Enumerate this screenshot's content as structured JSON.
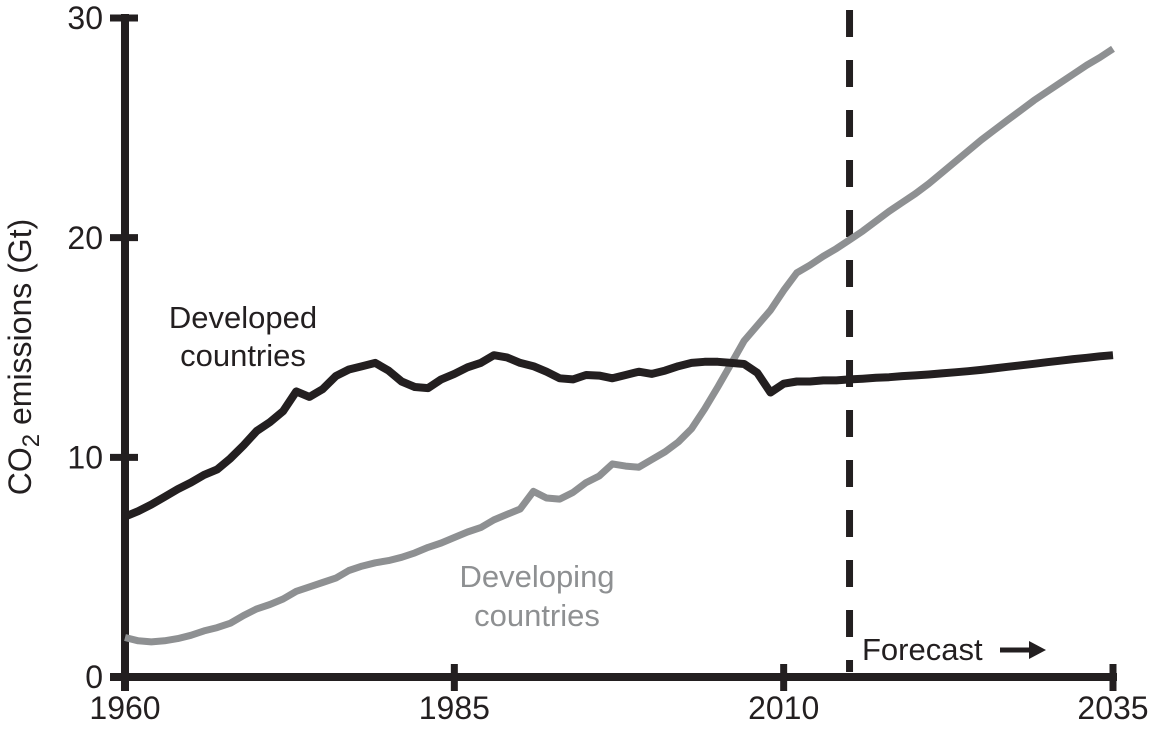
{
  "chart_data": {
    "type": "line",
    "title": "",
    "xlabel": "",
    "ylabel": {
      "prefix": "CO",
      "sub": "2",
      "suffix": " emissions (Gt)"
    },
    "xlim": [
      1960,
      2035
    ],
    "ylim": [
      0,
      30
    ],
    "xticks": [
      1960,
      1985,
      2010,
      2035
    ],
    "yticks": [
      0,
      10,
      20,
      30
    ],
    "grid": false,
    "legend_position": "inline-annotations",
    "x_start": 1960,
    "x_step": 1,
    "series": [
      {
        "name": "Developed countries",
        "color": "#231f20",
        "line_width": 8,
        "values": [
          7.3,
          7.55,
          7.85,
          8.2,
          8.55,
          8.85,
          9.2,
          9.45,
          9.95,
          10.55,
          11.2,
          11.6,
          12.1,
          13.0,
          12.75,
          13.1,
          13.7,
          14.0,
          14.15,
          14.3,
          13.95,
          13.45,
          13.2,
          13.15,
          13.55,
          13.8,
          14.1,
          14.3,
          14.65,
          14.55,
          14.3,
          14.15,
          13.9,
          13.6,
          13.55,
          13.75,
          13.72,
          13.6,
          13.75,
          13.9,
          13.8,
          13.95,
          14.15,
          14.3,
          14.35,
          14.35,
          14.3,
          14.25,
          13.85,
          12.95,
          13.35,
          13.45,
          13.45,
          13.5,
          13.5,
          13.55,
          13.58,
          13.62,
          13.65,
          13.7,
          13.73,
          13.77,
          13.82,
          13.87,
          13.92,
          13.98,
          14.05,
          14.12,
          14.19,
          14.26,
          14.33,
          14.4,
          14.47,
          14.53,
          14.6,
          14.65
        ]
      },
      {
        "name": "Developing countries",
        "color": "#8e9092",
        "line_width": 7,
        "values": [
          1.8,
          1.65,
          1.6,
          1.65,
          1.75,
          1.9,
          2.1,
          2.25,
          2.45,
          2.8,
          3.1,
          3.3,
          3.55,
          3.9,
          4.1,
          4.3,
          4.5,
          4.85,
          5.05,
          5.2,
          5.3,
          5.45,
          5.65,
          5.9,
          6.1,
          6.35,
          6.6,
          6.8,
          7.15,
          7.4,
          7.65,
          8.45,
          8.15,
          8.1,
          8.4,
          8.85,
          9.15,
          9.7,
          9.6,
          9.55,
          9.9,
          10.25,
          10.7,
          11.3,
          12.2,
          13.2,
          14.25,
          15.3,
          16.0,
          16.7,
          17.6,
          18.4,
          18.75,
          19.15,
          19.5,
          19.9,
          20.3,
          20.75,
          21.2,
          21.6,
          22.0,
          22.45,
          22.95,
          23.45,
          23.95,
          24.45,
          24.9,
          25.35,
          25.8,
          26.25,
          26.65,
          27.05,
          27.45,
          27.85,
          28.2,
          28.6
        ]
      }
    ],
    "forecast_divider": {
      "x": 2015,
      "style": "dashed",
      "color": "#231f20",
      "dash": [
        27,
        23
      ],
      "width": 7
    },
    "annotations": [
      {
        "id": "developed",
        "lines": [
          "Developed",
          "countries"
        ],
        "color": "#231f20"
      },
      {
        "id": "developing",
        "lines": [
          "Developing",
          "countries"
        ],
        "color": "#8e9092"
      },
      {
        "id": "forecast",
        "lines": [
          "Forecast"
        ],
        "color": "#231f20",
        "arrow": "right"
      }
    ],
    "axis_color": "#231f20",
    "background": "#ffffff"
  }
}
